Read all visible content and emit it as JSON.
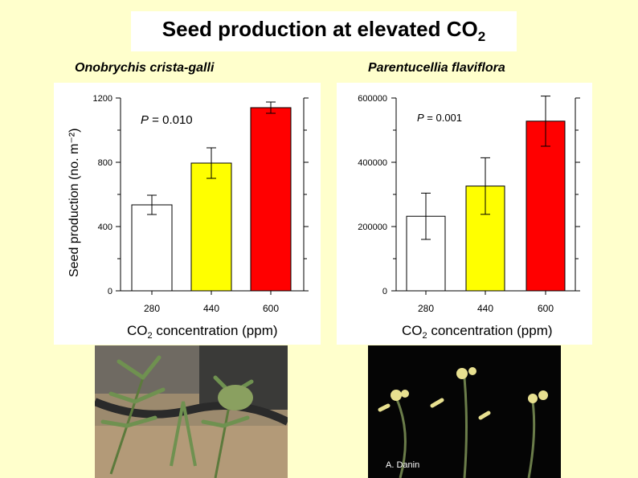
{
  "title": {
    "main": "Seed production at elevated CO",
    "sub": "2"
  },
  "species": [
    "Onobrychis crista-galli",
    "Parentucellia flaviflora"
  ],
  "shared_ylabel": "Seed production (no. m⁻²)",
  "photo_credit": "A. Danin",
  "chart_data": [
    {
      "type": "bar",
      "title": "Onobrychis crista-galli",
      "categories": [
        "280",
        "440",
        "600"
      ],
      "values": [
        535,
        795,
        1140
      ],
      "errors": [
        60,
        95,
        35
      ],
      "colors": [
        "#ffffff",
        "#ffff00",
        "#ff0000"
      ],
      "ylim": [
        0,
        1200
      ],
      "yticks": [
        0,
        400,
        800,
        1200
      ],
      "ytick_labels": [
        "0",
        "400",
        "800",
        "1200"
      ],
      "xlabel_main": "CO",
      "xlabel_sub": "2",
      "xlabel_rest": " concentration (ppm)",
      "ylabel": "Seed production (no. m⁻²)",
      "pvalue_label": "P",
      "pvalue": " = 0.010"
    },
    {
      "type": "bar",
      "title": "Parentucellia flaviflora",
      "categories": [
        "280",
        "440",
        "600"
      ],
      "values": [
        232000,
        326000,
        528000
      ],
      "errors": [
        72000,
        88000,
        78000
      ],
      "colors": [
        "#ffffff",
        "#ffff00",
        "#ff0000"
      ],
      "ylim": [
        0,
        600000
      ],
      "yticks": [
        0,
        200000,
        400000,
        600000
      ],
      "ytick_labels": [
        "0",
        "200000",
        "400000",
        "600000"
      ],
      "xlabel_main": "CO",
      "xlabel_sub": "2",
      "xlabel_rest": " concentration (ppm)",
      "pvalue_label": "P",
      "pvalue": " = 0.001"
    }
  ]
}
